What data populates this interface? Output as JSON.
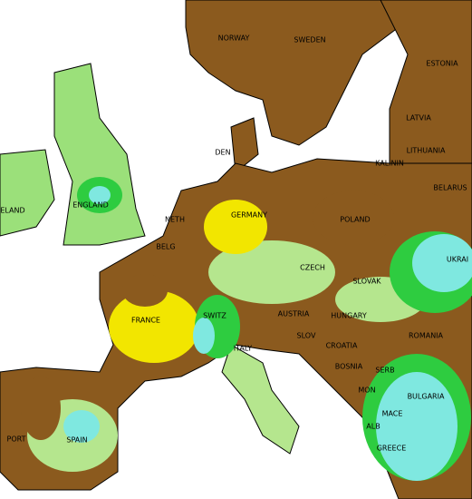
{
  "country_labels": [
    "NORWAY",
    "SWEDEN",
    "ESTONIA",
    "LATVIA",
    "LITHUANIA",
    "KALININ",
    "DEN",
    "BELARUS",
    "ELAND",
    "ENGLAND",
    "NETH",
    "GERMANY",
    "POLAND",
    "BELG",
    "UKRAI",
    "CZECH",
    "SLOVAK",
    "FRANCE",
    "SWITZ",
    "AUSTRIA",
    "HUNGARY",
    "ROMANIA",
    "SLOV",
    "CROATIA",
    "ITALY",
    "BOSNIA",
    "SERB",
    "MON",
    "BULGARIA",
    "MACE",
    "PORT",
    "SPAIN",
    "ALB",
    "GREECE"
  ]
}
